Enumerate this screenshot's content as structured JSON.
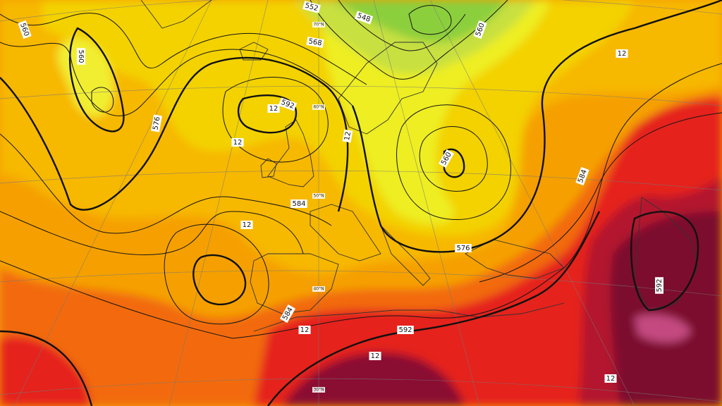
{
  "contour_labels": [
    "560",
    "560",
    "576",
    "592",
    "12",
    "12",
    "12",
    "584",
    "568",
    "552",
    "548",
    "560",
    "560",
    "584",
    "576",
    "584",
    "592",
    "592",
    "12",
    "12",
    "12",
    "12",
    "12"
  ],
  "grid_labels": [
    "70°N",
    "60°N",
    "50°N",
    "40°N",
    "30°N"
  ]
}
